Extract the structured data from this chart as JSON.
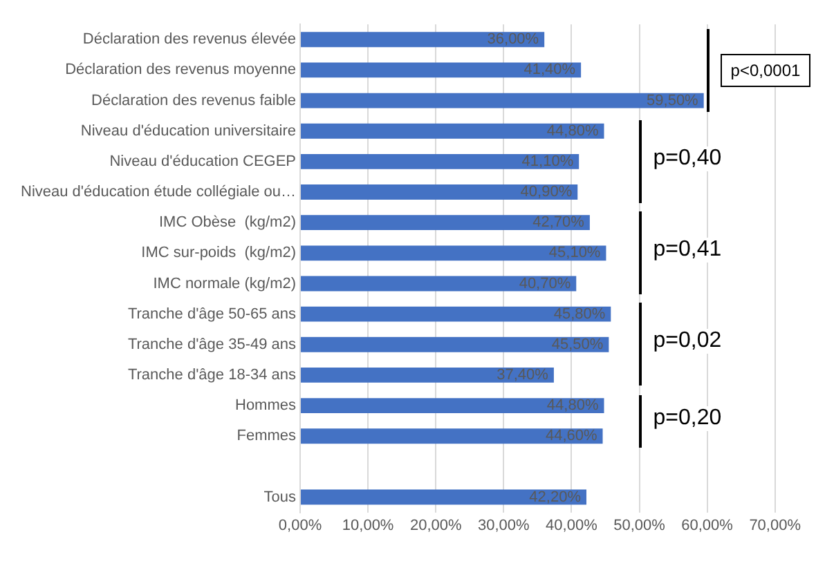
{
  "chart_data": {
    "type": "bar",
    "orientation": "horizontal",
    "categories": [
      "Déclaration des revenus élevée",
      "Déclaration des revenus moyenne",
      "Déclaration des revenus faible",
      "Niveau d'éducation universitaire",
      "Niveau d'éducation CEGEP",
      "Niveau d'éducation étude collégiale ou…",
      "IMC Obèse  (kg/m2)",
      "IMC sur-poids  (kg/m2)",
      "IMC normale (kg/m2)",
      "Tranche d'âge 50-65 ans",
      "Tranche d'âge 35-49 ans",
      "Tranche d'âge 18-34 ans",
      "Hommes",
      "Femmes",
      null,
      "Tous"
    ],
    "values": [
      36.0,
      41.4,
      59.5,
      44.8,
      41.1,
      40.9,
      42.7,
      45.1,
      40.7,
      45.8,
      45.5,
      37.4,
      44.8,
      44.6,
      null,
      42.2
    ],
    "value_labels": [
      "36,00%",
      "41,40%",
      "59,50%",
      "44,80%",
      "41,10%",
      "40,90%",
      "42,70%",
      "45,10%",
      "40,70%",
      "45,80%",
      "45,50%",
      "37,40%",
      "44,80%",
      "44,60%",
      null,
      "42,20%"
    ],
    "color": "#4472c4",
    "xlim": [
      0,
      70
    ],
    "xticks": [
      {
        "value": 0,
        "label": "0,00%"
      },
      {
        "value": 10,
        "label": "10,00%"
      },
      {
        "value": 20,
        "label": "20,00%"
      },
      {
        "value": 30,
        "label": "30,00%"
      },
      {
        "value": 40,
        "label": "40,00%"
      },
      {
        "value": 50,
        "label": "50,00%"
      },
      {
        "value": 60,
        "label": "60,00%"
      },
      {
        "value": 70,
        "label": "70,00%"
      }
    ],
    "grid": "x",
    "annotations": [
      "p<0,0001",
      "p=0,40",
      "p=0,41",
      "p=0,02",
      "p=0,20"
    ]
  }
}
